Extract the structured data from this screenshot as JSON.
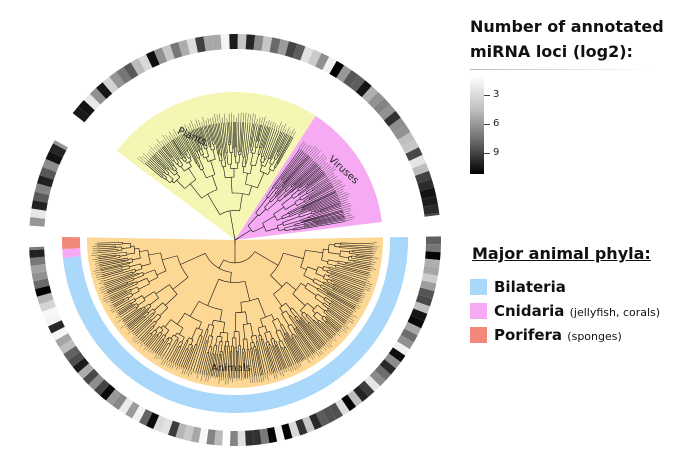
{
  "diagram": {
    "clades": [
      {
        "name": "Plants",
        "color": "#f5f6b4"
      },
      {
        "name": "Viruses",
        "color": "#f5aaf3"
      },
      {
        "name": "Animals",
        "color": "#fcd894"
      }
    ]
  },
  "scale_legend": {
    "title_line1": "Number of annotated",
    "title_line2": "miRNA loci (log2):",
    "ticks": [
      "3",
      "6",
      "9"
    ]
  },
  "phyla_legend": {
    "title": "Major animal phyla:",
    "items": [
      {
        "name": "Bilateria",
        "note": "",
        "color": "#a9d8fa"
      },
      {
        "name": "Cnidaria",
        "note": "(jellyfish, corals)",
        "color": "#f5aaf3"
      },
      {
        "name": "Porifera",
        "note": "(sponges)",
        "color": "#f2887a"
      }
    ]
  }
}
